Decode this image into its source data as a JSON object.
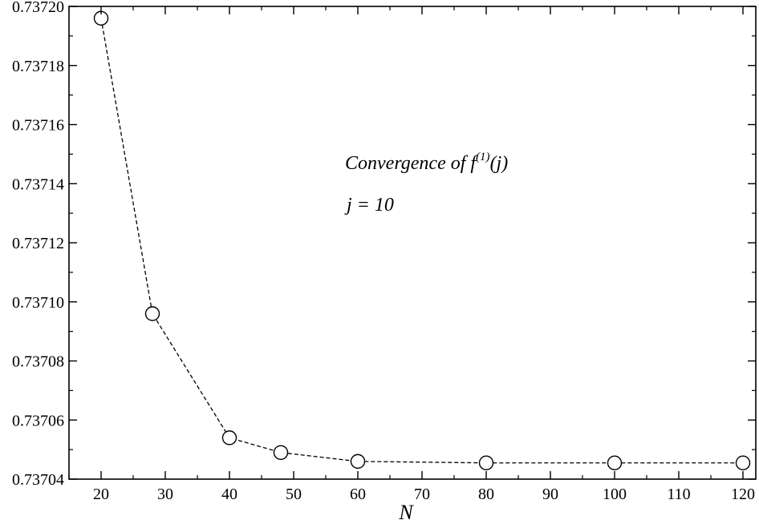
{
  "chart_data": {
    "type": "line",
    "xlabel": "N",
    "ylabel": "",
    "xlim": [
      15,
      122
    ],
    "ylim": [
      0.73704,
      0.7372
    ],
    "x_ticks": [
      20,
      30,
      40,
      50,
      60,
      70,
      80,
      90,
      100,
      110,
      120
    ],
    "x_tick_labels": [
      "20",
      "30",
      "40",
      "50",
      "60",
      "70",
      "80",
      "90",
      "100",
      "110",
      "120"
    ],
    "y_ticks": [
      0.73704,
      0.73706,
      0.73708,
      0.7371,
      0.73712,
      0.73714,
      0.73716,
      0.73718,
      0.7372
    ],
    "y_tick_labels": [
      "0.73704",
      "0.73706",
      "0.73708",
      "0.73710",
      "0.73712",
      "0.73714",
      "0.73716",
      "0.73718",
      "0.73720"
    ],
    "grid": false,
    "series": [
      {
        "x": [
          20,
          28,
          40,
          48,
          60,
          80,
          100,
          120
        ],
        "y": [
          0.737196,
          0.737096,
          0.737054,
          0.737049,
          0.737046,
          0.7370455,
          0.7370455,
          0.7370455
        ],
        "line_style": "dashed",
        "marker": "open-circle",
        "color": "#000000"
      }
    ],
    "annotations": [
      {
        "parts": [
          {
            "text": "Convergence of ",
            "style": "normal"
          },
          {
            "text": "f",
            "style": "normal"
          },
          {
            "text": "(1)",
            "style": "superscript"
          },
          {
            "text": "(j)",
            "style": "normal"
          }
        ]
      },
      {
        "parts": [
          {
            "text": "j = 10",
            "style": "normal"
          }
        ]
      }
    ]
  }
}
